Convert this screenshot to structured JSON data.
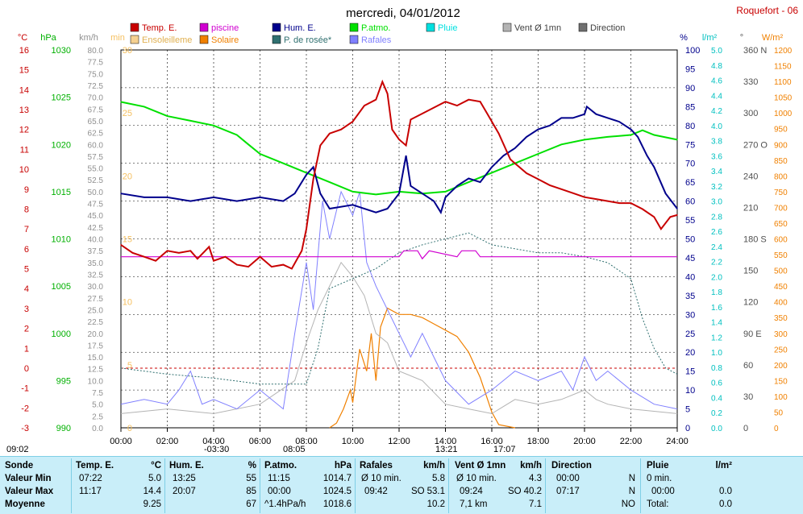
{
  "header": {
    "title": "mercredi, 04/01/2012",
    "station": "Roquefort - 06",
    "sunrise_time": "09:02",
    "sunset_time": "17:07",
    "events": [
      "-03:30",
      "08:05",
      "13:21"
    ]
  },
  "legend": [
    {
      "label": "Temp. E.",
      "color": "#c80000"
    },
    {
      "label": "piscine",
      "color": "#d000d0"
    },
    {
      "label": "Hum. E.",
      "color": "#00008c"
    },
    {
      "label": "P.atmo.",
      "color": "#00e000"
    },
    {
      "label": "Pluie",
      "color": "#00e0e0"
    },
    {
      "label": "Vent Ø 1mn",
      "color": "#b4b4b4"
    },
    {
      "label": "Direction",
      "color": "#707070"
    },
    {
      "label": "Ensoleilleme",
      "color": "#f5d090"
    },
    {
      "label": "Solaire",
      "color": "#f08000"
    },
    {
      "label": "P. de rosée*",
      "color": "#307070"
    },
    {
      "label": "Rafales",
      "color": "#8080ff"
    }
  ],
  "chart_data": {
    "type": "line",
    "x_label_unit": "hh:mm",
    "x_ticks": [
      "00:00",
      "02:00",
      "04:00",
      "06:00",
      "08:00",
      "10:00",
      "12:00",
      "14:00",
      "16:00",
      "18:00",
      "20:00",
      "22:00",
      "24:00"
    ],
    "axes": [
      {
        "unit": "°C",
        "min": -3,
        "max": 16,
        "step": 1,
        "color": "#c80000"
      },
      {
        "unit": "hPa",
        "min": 990,
        "max": 1030,
        "step": 5,
        "color": "#00b000"
      },
      {
        "unit": "km/h",
        "min": 0,
        "max": 80,
        "step": 2.5,
        "color": "#909090"
      },
      {
        "unit": "min",
        "min": 0,
        "max": 30,
        "step": 5,
        "color": "#f5c060"
      },
      {
        "unit": "%",
        "min": 0,
        "max": 100,
        "step": 5,
        "color": "#00008c"
      },
      {
        "unit": "l/m²",
        "min": 0,
        "max": 5,
        "step": 0.2,
        "color": "#00c0c0"
      },
      {
        "unit": "°",
        "min": 0,
        "max": 360,
        "step": 30,
        "color": "#505050",
        "compass": {
          "90": "E",
          "180": "S",
          "270": "O",
          "360": "N"
        }
      },
      {
        "unit": "W/m²",
        "min": 0,
        "max": 1200,
        "step": 50,
        "color": "#f08000"
      }
    ],
    "series": [
      {
        "name": "Temp. E.",
        "unit": "°C",
        "color": "#c80000",
        "points": [
          [
            0,
            6.2
          ],
          [
            0.5,
            5.8
          ],
          [
            1,
            5.6
          ],
          [
            1.5,
            5.4
          ],
          [
            2,
            5.9
          ],
          [
            2.5,
            5.8
          ],
          [
            3,
            5.9
          ],
          [
            3.3,
            5.5
          ],
          [
            3.8,
            6.1
          ],
          [
            4,
            5.4
          ],
          [
            4.5,
            5.6
          ],
          [
            5,
            5.2
          ],
          [
            5.5,
            5.1
          ],
          [
            6,
            5.6
          ],
          [
            6.5,
            5.1
          ],
          [
            7,
            5.2
          ],
          [
            7.37,
            5.0
          ],
          [
            7.8,
            5.9
          ],
          [
            8,
            7.0
          ],
          [
            8.3,
            9.5
          ],
          [
            8.6,
            11.2
          ],
          [
            9,
            11.8
          ],
          [
            9.5,
            12.0
          ],
          [
            10,
            12.4
          ],
          [
            10.5,
            13.2
          ],
          [
            11,
            13.5
          ],
          [
            11.28,
            14.4
          ],
          [
            11.5,
            13.8
          ],
          [
            11.7,
            12.0
          ],
          [
            12,
            11.5
          ],
          [
            12.3,
            11.2
          ],
          [
            12.5,
            12.5
          ],
          [
            13,
            12.8
          ],
          [
            13.5,
            13.1
          ],
          [
            14,
            13.4
          ],
          [
            14.5,
            13.2
          ],
          [
            15,
            13.5
          ],
          [
            15.5,
            13.4
          ],
          [
            15.8,
            12.8
          ],
          [
            16.3,
            11.8
          ],
          [
            16.8,
            10.5
          ],
          [
            17.5,
            9.8
          ],
          [
            18,
            9.5
          ],
          [
            18.5,
            9.2
          ],
          [
            19,
            9.0
          ],
          [
            19.5,
            8.8
          ],
          [
            20,
            8.6
          ],
          [
            20.5,
            8.5
          ],
          [
            21,
            8.4
          ],
          [
            21.5,
            8.3
          ],
          [
            22,
            8.3
          ],
          [
            22.5,
            8.0
          ],
          [
            23,
            7.6
          ],
          [
            23.3,
            7.0
          ],
          [
            23.7,
            7.6
          ],
          [
            24,
            7.7
          ]
        ]
      },
      {
        "name": "piscine",
        "unit": "°C",
        "color": "#d000d0",
        "points": [
          [
            0,
            5.6
          ],
          [
            12,
            5.6
          ],
          [
            12.2,
            5.9
          ],
          [
            12.8,
            5.9
          ],
          [
            13,
            5.5
          ],
          [
            13.3,
            5.9
          ],
          [
            14.5,
            5.6
          ],
          [
            14.7,
            5.9
          ],
          [
            15.3,
            5.9
          ],
          [
            15.5,
            5.6
          ],
          [
            24,
            5.6
          ]
        ]
      },
      {
        "name": "Hum. E.",
        "unit": "%",
        "color": "#00008c",
        "points": [
          [
            0,
            62
          ],
          [
            1,
            61
          ],
          [
            2,
            61
          ],
          [
            3,
            60
          ],
          [
            4,
            61
          ],
          [
            5,
            60
          ],
          [
            6,
            61
          ],
          [
            7,
            60
          ],
          [
            7.5,
            62
          ],
          [
            8,
            67
          ],
          [
            8.3,
            69
          ],
          [
            8.6,
            62
          ],
          [
            9,
            58
          ],
          [
            10,
            59
          ],
          [
            11,
            57
          ],
          [
            11.5,
            58
          ],
          [
            12,
            62
          ],
          [
            12.3,
            72
          ],
          [
            12.5,
            64
          ],
          [
            13,
            62
          ],
          [
            13.5,
            60
          ],
          [
            13.8,
            57
          ],
          [
            14,
            61
          ],
          [
            14.5,
            64
          ],
          [
            15,
            66
          ],
          [
            15.5,
            65
          ],
          [
            16,
            69
          ],
          [
            16.5,
            72
          ],
          [
            17,
            74
          ],
          [
            17.5,
            77
          ],
          [
            18,
            79
          ],
          [
            18.5,
            80
          ],
          [
            19,
            82
          ],
          [
            19.5,
            82
          ],
          [
            20,
            83
          ],
          [
            20.1,
            85
          ],
          [
            20.5,
            83
          ],
          [
            21,
            82
          ],
          [
            21.5,
            81
          ],
          [
            22,
            79
          ],
          [
            22.3,
            77
          ],
          [
            22.7,
            72
          ],
          [
            23,
            69
          ],
          [
            23.5,
            62
          ],
          [
            24,
            58
          ]
        ]
      },
      {
        "name": "P.atmo.",
        "unit": "hPa",
        "color": "#00e000",
        "points": [
          [
            0,
            1024.5
          ],
          [
            1,
            1024
          ],
          [
            2,
            1023
          ],
          [
            3,
            1022.5
          ],
          [
            4,
            1022
          ],
          [
            5,
            1021
          ],
          [
            5.5,
            1020
          ],
          [
            6,
            1019
          ],
          [
            7,
            1018
          ],
          [
            8,
            1017
          ],
          [
            9,
            1016
          ],
          [
            10,
            1015
          ],
          [
            11,
            1014.7
          ],
          [
            12,
            1015
          ],
          [
            13,
            1014.8
          ],
          [
            14,
            1015
          ],
          [
            15,
            1016
          ],
          [
            16,
            1017
          ],
          [
            17,
            1018
          ],
          [
            18,
            1019
          ],
          [
            19,
            1020
          ],
          [
            20,
            1020.5
          ],
          [
            21,
            1020.8
          ],
          [
            22,
            1021
          ],
          [
            22.5,
            1021.5
          ],
          [
            23,
            1021
          ],
          [
            24,
            1020.5
          ]
        ]
      },
      {
        "name": "P. de rosée*",
        "unit": "°C",
        "color": "#307070",
        "points": [
          [
            0,
            0.0
          ],
          [
            2,
            -0.3
          ],
          [
            4,
            -0.5
          ],
          [
            6,
            -0.8
          ],
          [
            8,
            -0.8
          ],
          [
            8.5,
            1.0
          ],
          [
            9,
            4.0
          ],
          [
            10,
            4.5
          ],
          [
            11,
            5.0
          ],
          [
            12,
            5.8
          ],
          [
            13,
            6.2
          ],
          [
            14,
            6.5
          ],
          [
            15,
            6.8
          ],
          [
            16,
            6.2
          ],
          [
            17,
            6.0
          ],
          [
            18,
            5.8
          ],
          [
            19,
            5.8
          ],
          [
            20,
            5.6
          ],
          [
            21,
            5.3
          ],
          [
            22,
            4.5
          ],
          [
            22.5,
            2.5
          ],
          [
            23,
            1.0
          ],
          [
            23.5,
            0.0
          ],
          [
            24,
            -0.3
          ]
        ]
      },
      {
        "name": "Solaire",
        "unit": "W/m²",
        "color": "#f08000",
        "points": [
          [
            9,
            0
          ],
          [
            9.3,
            15
          ],
          [
            9.6,
            60
          ],
          [
            9.9,
            120
          ],
          [
            10,
            80
          ],
          [
            10.3,
            250
          ],
          [
            10.6,
            180
          ],
          [
            10.8,
            300
          ],
          [
            11,
            150
          ],
          [
            11.2,
            320
          ],
          [
            11.5,
            380
          ],
          [
            12,
            360
          ],
          [
            12.5,
            360
          ],
          [
            13,
            350
          ],
          [
            13.5,
            330
          ],
          [
            14,
            310
          ],
          [
            14.5,
            290
          ],
          [
            15,
            240
          ],
          [
            15.5,
            160
          ],
          [
            16,
            50
          ],
          [
            16.3,
            10
          ],
          [
            17,
            0
          ]
        ]
      },
      {
        "name": "Rafales",
        "unit": "km/h",
        "color": "#8080ff",
        "points": [
          [
            0,
            5
          ],
          [
            1,
            6
          ],
          [
            2,
            5
          ],
          [
            2.5,
            8
          ],
          [
            3,
            12
          ],
          [
            3.5,
            5
          ],
          [
            4,
            6
          ],
          [
            5,
            4
          ],
          [
            6,
            8
          ],
          [
            7,
            4
          ],
          [
            7.5,
            20
          ],
          [
            8,
            35
          ],
          [
            8.3,
            25
          ],
          [
            8.7,
            48
          ],
          [
            9,
            40
          ],
          [
            9.5,
            50
          ],
          [
            10,
            45
          ],
          [
            10.3,
            50
          ],
          [
            10.6,
            35
          ],
          [
            11,
            30
          ],
          [
            11.5,
            25
          ],
          [
            12,
            20
          ],
          [
            12.5,
            15
          ],
          [
            13,
            20
          ],
          [
            13.5,
            15
          ],
          [
            14,
            10
          ],
          [
            15,
            5
          ],
          [
            16,
            8
          ],
          [
            17,
            12
          ],
          [
            18,
            10
          ],
          [
            19,
            12
          ],
          [
            19.5,
            8
          ],
          [
            20,
            15
          ],
          [
            20.5,
            10
          ],
          [
            21,
            12
          ],
          [
            22,
            8
          ],
          [
            23,
            5
          ],
          [
            24,
            4
          ]
        ]
      },
      {
        "name": "Vent Ø 1mn",
        "unit": "km/h",
        "color": "#b4b4b4",
        "points": [
          [
            0,
            3
          ],
          [
            2,
            4
          ],
          [
            4,
            3
          ],
          [
            6,
            5
          ],
          [
            7.5,
            10
          ],
          [
            8,
            18
          ],
          [
            8.5,
            25
          ],
          [
            9,
            30
          ],
          [
            9.5,
            35
          ],
          [
            10,
            32
          ],
          [
            10.5,
            28
          ],
          [
            11,
            20
          ],
          [
            11.5,
            18
          ],
          [
            12,
            12
          ],
          [
            13,
            10
          ],
          [
            14,
            5
          ],
          [
            15,
            4
          ],
          [
            16,
            3
          ],
          [
            17,
            6
          ],
          [
            18,
            5
          ],
          [
            19,
            6
          ],
          [
            20,
            8
          ],
          [
            20.5,
            6
          ],
          [
            21,
            5
          ],
          [
            22,
            4
          ],
          [
            24,
            3
          ]
        ]
      }
    ]
  },
  "summary": {
    "sonde": {
      "title": "Sonde",
      "rows": [
        "Valeur Min",
        "Valeur Max",
        "Moyenne"
      ]
    },
    "temp": {
      "title": "Temp. E.",
      "unit": "°C",
      "rows": [
        [
          "07:22",
          "5.0"
        ],
        [
          "11:17",
          "14.4"
        ],
        [
          "",
          "9.25"
        ]
      ]
    },
    "hum": {
      "title": "Hum. E.",
      "unit": "%",
      "rows": [
        [
          "13:25",
          "55"
        ],
        [
          "20:07",
          "85"
        ],
        [
          "",
          "67"
        ]
      ]
    },
    "patmo": {
      "title": "P.atmo.",
      "unit": "hPa",
      "rows": [
        [
          "11:15",
          "1014.7"
        ],
        [
          "00:00",
          "1024.5"
        ],
        [
          "^1.4hPa/h",
          "1018.6"
        ]
      ]
    },
    "rafales": {
      "title": "Rafales",
      "unit": "km/h",
      "rows": [
        [
          "Ø 10 min.",
          "",
          "5.8"
        ],
        [
          "09:42",
          "SO",
          "53.1"
        ],
        [
          "",
          "",
          "10.2"
        ]
      ]
    },
    "vent": {
      "title": "Vent Ø 1mn",
      "unit": "km/h",
      "rows": [
        [
          "Ø 10 min.",
          "",
          "4.3"
        ],
        [
          "09:24",
          "SO",
          "40.2"
        ],
        [
          "7,1 km",
          "",
          "7.1"
        ]
      ]
    },
    "direction": {
      "title": "Direction",
      "unit": "",
      "rows": [
        [
          "00:00",
          "N"
        ],
        [
          "07:17",
          "N"
        ],
        [
          "",
          "NO"
        ]
      ]
    },
    "pluie": {
      "title": "Pluie",
      "unit": "l/m²",
      "rows": [
        [
          "0 min.",
          ""
        ],
        [
          "00:00",
          "0.0"
        ],
        [
          "Total:",
          "0.0"
        ]
      ]
    }
  }
}
